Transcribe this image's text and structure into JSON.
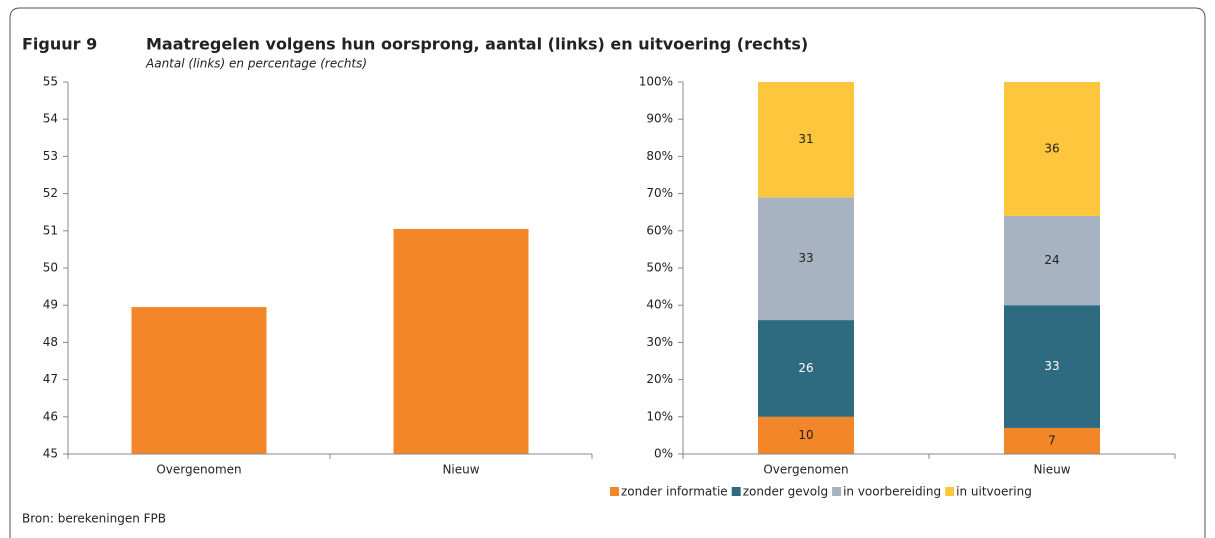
{
  "header": {
    "label": "Figuur 9",
    "title": "Maatregelen volgens hun oorsprong, aantal (links) en uitvoering (rechts)",
    "subtitle": "Aantal (links) en percentage (rechts)"
  },
  "source": "Bron: berekeningen FPB",
  "chart_data": [
    {
      "type": "bar",
      "categories": [
        "Overgenomen",
        "Nieuw"
      ],
      "values": [
        48.95,
        51.05
      ],
      "color": "#f4862a",
      "ylim": [
        45,
        55
      ],
      "yticks": [
        45,
        46,
        47,
        48,
        49,
        50,
        51,
        52,
        53,
        54,
        55
      ],
      "grid": false
    },
    {
      "type": "stacked_bar",
      "categories": [
        "Overgenomen",
        "Nieuw"
      ],
      "series": [
        {
          "name": "zonder informatie",
          "color": "#f4862a",
          "values": [
            10,
            7
          ]
        },
        {
          "name": "zonder gevolg",
          "color": "#2e6a80",
          "values": [
            26,
            33
          ]
        },
        {
          "name": "in voorbereiding",
          "color": "#a7b3c1",
          "values": [
            33,
            24
          ]
        },
        {
          "name": "in uitvoering",
          "color": "#fdc63c",
          "values": [
            31,
            36
          ]
        }
      ],
      "ylim": [
        0,
        100
      ],
      "yticks": [
        {
          "value": 0,
          "label": "0%"
        },
        {
          "value": 10,
          "label": "10%"
        },
        {
          "value": 20,
          "label": "20%"
        },
        {
          "value": 30,
          "label": "30%"
        },
        {
          "value": 40,
          "label": "40%"
        },
        {
          "value": 50,
          "label": "50%"
        },
        {
          "value": 60,
          "label": "60%"
        },
        {
          "value": 70,
          "label": "70%"
        },
        {
          "value": 80,
          "label": "80%"
        },
        {
          "value": 90,
          "label": "90%"
        },
        {
          "value": 100,
          "label": "100%"
        }
      ],
      "grid": false,
      "legend": "bottom"
    }
  ]
}
